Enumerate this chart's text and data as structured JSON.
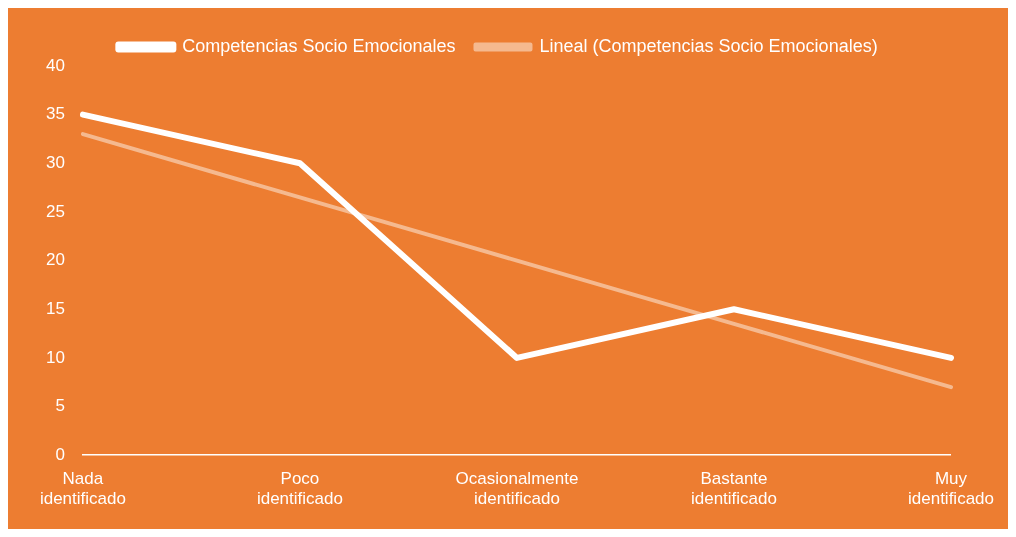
{
  "chart_data": {
    "type": "line",
    "categories": [
      "Nada identificado",
      "Poco identificado",
      "Ocasionalmente identificado",
      "Bastante identificado",
      "Muy identificado"
    ],
    "series": [
      {
        "name": "Competencias Socio Emocionales",
        "color": "#ffffff",
        "values": [
          35,
          30,
          10,
          15,
          10
        ]
      },
      {
        "name": "Lineal (Competencias Socio Emocionales)",
        "type": "line",
        "color": "#f5b98f",
        "values": [
          33,
          26.5,
          20,
          13.5,
          7
        ]
      }
    ],
    "ylim": [
      0,
      40
    ],
    "yticks": [
      0,
      5,
      10,
      15,
      20,
      25,
      30,
      35,
      40
    ],
    "grid": false,
    "legend": "top",
    "marker": "none",
    "line_style": "solid"
  }
}
